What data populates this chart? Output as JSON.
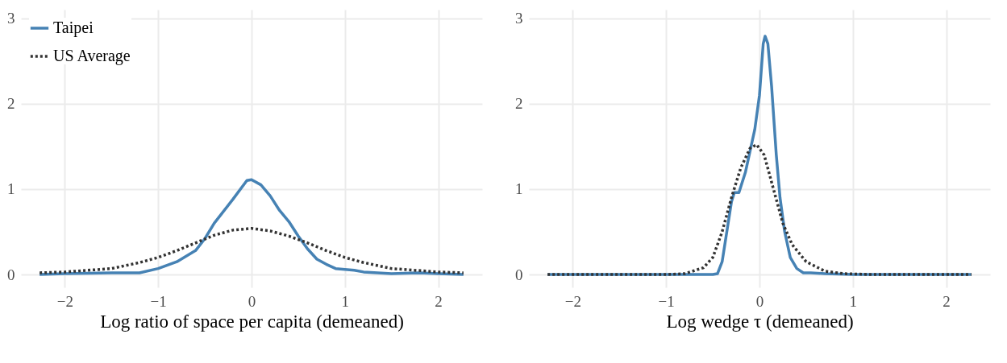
{
  "chart_data": [
    {
      "type": "line",
      "xlabel": "Log ratio of space per capita (demeaned)",
      "xlim": [
        -2.47,
        2.47
      ],
      "xticks": [
        -2,
        -1,
        0,
        1,
        2
      ],
      "ylim": [
        -0.15,
        3.1
      ],
      "yticks": [
        0,
        1,
        2,
        3
      ],
      "grid": true,
      "legend": "top left",
      "series": [
        {
          "name": "Taipei",
          "color": "#4682b4",
          "line_style": "solid",
          "x": [
            -2.27,
            -2,
            -1.5,
            -1.2,
            -1,
            -0.8,
            -0.6,
            -0.5,
            -0.4,
            -0.2,
            -0.05,
            0,
            0.1,
            0.2,
            0.3,
            0.4,
            0.5,
            0.6,
            0.7,
            0.8,
            0.9,
            1.0,
            1.1,
            1.2,
            1.5,
            1.8,
            2.0,
            2.27
          ],
          "values": [
            0.0,
            0.01,
            0.02,
            0.02,
            0.07,
            0.15,
            0.28,
            0.42,
            0.6,
            0.88,
            1.1,
            1.11,
            1.05,
            0.92,
            0.75,
            0.62,
            0.45,
            0.3,
            0.18,
            0.12,
            0.07,
            0.06,
            0.05,
            0.03,
            0.01,
            0.02,
            0.01,
            0.0
          ]
        },
        {
          "name": "US Average",
          "color": "#333333",
          "line_style": "dotted",
          "x": [
            -2.27,
            -2,
            -1.5,
            -1.2,
            -1,
            -0.8,
            -0.6,
            -0.4,
            -0.2,
            0,
            0.2,
            0.4,
            0.6,
            0.8,
            1,
            1.2,
            1.5,
            2,
            2.27
          ],
          "values": [
            0.02,
            0.03,
            0.07,
            0.14,
            0.2,
            0.28,
            0.37,
            0.46,
            0.52,
            0.54,
            0.51,
            0.45,
            0.37,
            0.28,
            0.2,
            0.14,
            0.07,
            0.03,
            0.02
          ]
        }
      ]
    },
    {
      "type": "line",
      "xlabel": "Log wedge τ (demeaned)",
      "xlim": [
        -2.47,
        2.47
      ],
      "xticks": [
        -2,
        -1,
        0,
        1,
        2
      ],
      "ylim": [
        -0.15,
        3.1
      ],
      "yticks": [
        0,
        1,
        2,
        3
      ],
      "grid": true,
      "legend": "top left",
      "series": [
        {
          "name": "Taipei",
          "color": "#4682b4",
          "line_style": "solid",
          "x": [
            -2.27,
            -0.5,
            -0.45,
            -0.4,
            -0.35,
            -0.3,
            -0.27,
            -0.22,
            -0.15,
            -0.05,
            0,
            0.04,
            0.06,
            0.09,
            0.13,
            0.18,
            0.22,
            0.27,
            0.33,
            0.4,
            0.47,
            0.55,
            0.7,
            1,
            2.27
          ],
          "values": [
            0,
            0,
            0.01,
            0.15,
            0.5,
            0.85,
            0.96,
            0.96,
            1.2,
            1.7,
            2.1,
            2.7,
            2.79,
            2.7,
            2.2,
            1.4,
            0.9,
            0.5,
            0.2,
            0.07,
            0.02,
            0.02,
            0.01,
            0,
            0
          ]
        },
        {
          "name": "US Average",
          "color": "#333333",
          "line_style": "dotted",
          "x": [
            -2.27,
            -1,
            -0.8,
            -0.6,
            -0.5,
            -0.4,
            -0.3,
            -0.2,
            -0.1,
            -0.03,
            0.05,
            0.15,
            0.25,
            0.35,
            0.5,
            0.7,
            0.9,
            1.2,
            2.27
          ],
          "values": [
            0,
            0,
            0.01,
            0.08,
            0.2,
            0.5,
            0.9,
            1.25,
            1.48,
            1.52,
            1.4,
            1.0,
            0.6,
            0.35,
            0.15,
            0.04,
            0.01,
            0,
            0
          ]
        }
      ]
    }
  ]
}
